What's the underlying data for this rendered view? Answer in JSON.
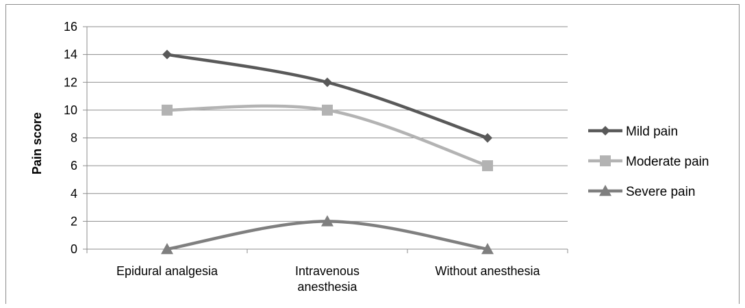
{
  "chart_data": {
    "type": "line",
    "title": "",
    "xlabel": "",
    "ylabel": "Pain score",
    "ylim": [
      0,
      16
    ],
    "yticks": [
      "0",
      "2",
      "4",
      "6",
      "8",
      "10",
      "12",
      "14",
      "16"
    ],
    "categories": [
      [
        "Epidural analgesia"
      ],
      [
        "Intravenous",
        "anesthesia"
      ],
      [
        "Without anesthesia"
      ]
    ],
    "grid": "horizontal",
    "legend_position": "right",
    "series": [
      {
        "name": "Mild pain",
        "values": [
          14,
          12,
          8
        ],
        "color": "#595959",
        "marker": "diamond"
      },
      {
        "name": "Moderate pain",
        "values": [
          10,
          10,
          6
        ],
        "color": "#b3b3b3",
        "marker": "square"
      },
      {
        "name": "Severe pain",
        "values": [
          0,
          2,
          0
        ],
        "color": "#7f7f7f",
        "marker": "triangle"
      }
    ]
  }
}
